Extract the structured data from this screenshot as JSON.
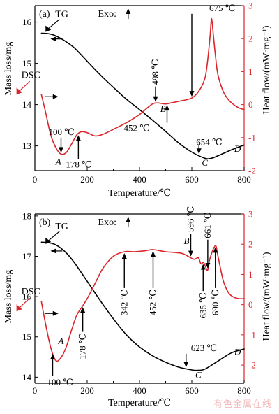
{
  "colors": {
    "tg": "#000000",
    "dsc": "#d9262b",
    "axis": "#000000"
  },
  "watermark": "有色金属在线",
  "chart_data": [
    {
      "type": "line",
      "panel_label": "(a)",
      "xlabel": "Temperature/℃",
      "ylabel_left": "Mass loss/mg",
      "ylabel_right": "Heat flow/(mW·mg⁻¹)",
      "exo_label": "Exo:",
      "xlim": [
        0,
        800
      ],
      "ylim_left": [
        12.4,
        16.4
      ],
      "ylim_right": [
        -2,
        3
      ],
      "x_ticks": [
        0,
        200,
        400,
        600,
        800
      ],
      "y_ticks_left": [
        13,
        14,
        15,
        16
      ],
      "y_ticks_right": [
        -2,
        -1,
        0,
        1,
        2,
        3
      ],
      "series": [
        {
          "name": "TG",
          "axis": "left",
          "x": [
            25,
            50,
            75,
            100,
            125,
            150,
            175,
            200,
            250,
            300,
            350,
            400,
            450,
            500,
            550,
            600,
            650,
            675,
            700,
            750,
            800
          ],
          "y": [
            15.73,
            15.72,
            15.68,
            15.6,
            15.5,
            15.38,
            15.22,
            15.05,
            14.72,
            14.42,
            14.13,
            13.88,
            13.62,
            13.35,
            13.07,
            12.85,
            12.7,
            12.7,
            12.76,
            12.9,
            13.02
          ]
        },
        {
          "name": "DSC",
          "axis": "right",
          "x": [
            25,
            40,
            60,
            80,
            100,
            120,
            140,
            160,
            178,
            200,
            230,
            260,
            300,
            350,
            400,
            430,
            452,
            470,
            498,
            520,
            550,
            600,
            630,
            650,
            660,
            670,
            675,
            680,
            690,
            700,
            720,
            740,
            760,
            780,
            800
          ],
          "y": [
            0.3,
            -0.2,
            -0.9,
            -1.3,
            -1.5,
            -1.45,
            -1.2,
            -0.92,
            -0.82,
            -0.85,
            -0.95,
            -0.9,
            -0.75,
            -0.55,
            -0.3,
            -0.1,
            0.03,
            0.05,
            0.02,
            0.05,
            0.1,
            0.2,
            0.45,
            0.8,
            1.3,
            2.1,
            2.6,
            2.3,
            1.5,
            0.9,
            0.4,
            0.15,
            0.0,
            -0.1,
            -0.15
          ]
        }
      ],
      "annotations": [
        {
          "text": "TG",
          "x": 110,
          "y_axis": "left",
          "y": 16.05
        },
        {
          "text": "DSC",
          "x": 55,
          "y_axis": "left",
          "y": 14.65
        },
        {
          "text": "100 ℃",
          "x": 100,
          "y_axis": "right",
          "y": -1.0
        },
        {
          "text": "178 ℃",
          "x": 185,
          "y_axis": "right",
          "y": -1.65
        },
        {
          "text": "452 ℃",
          "x": 420,
          "y_axis": "right",
          "y": -0.55
        },
        {
          "text": "498 ℃",
          "x": 520,
          "y_axis": "right",
          "y": 0.55
        },
        {
          "text": "675 ℃",
          "x": 720,
          "y_axis": "right",
          "y": 2.75
        },
        {
          "text": "654 ℃",
          "x": 670,
          "y_axis": "left",
          "y": 12.95
        }
      ],
      "point_labels": [
        {
          "text": "A",
          "x": 90,
          "y_axis": "right",
          "y": -1.82
        },
        {
          "text": "B",
          "x": 490,
          "y_axis": "right",
          "y": -0.22
        },
        {
          "text": "C",
          "x": 650,
          "y_axis": "left",
          "y": 12.52
        },
        {
          "text": "D",
          "x": 775,
          "y_axis": "left",
          "y": 12.86
        }
      ]
    },
    {
      "type": "line",
      "panel_label": "(b)",
      "xlabel": "Temperature/℃",
      "ylabel_left": "Mass loss/mg",
      "ylabel_right": "Heat flow/(mW·mg⁻¹)",
      "exo_label": "Exo:",
      "xlim": [
        0,
        800
      ],
      "ylim_left": [
        13.85,
        18.05
      ],
      "ylim_right": [
        -2.6,
        3
      ],
      "x_ticks": [
        0,
        200,
        400,
        600,
        800
      ],
      "y_ticks_left": [
        14,
        15,
        16,
        17,
        18
      ],
      "y_ticks_right": [
        -2,
        -1,
        0,
        1,
        2,
        3
      ],
      "series": [
        {
          "name": "TG",
          "axis": "left",
          "x": [
            25,
            50,
            75,
            100,
            125,
            150,
            175,
            200,
            250,
            300,
            350,
            400,
            450,
            500,
            550,
            600,
            623,
            650,
            700,
            750,
            800
          ],
          "y": [
            17.35,
            17.34,
            17.3,
            17.2,
            17.05,
            16.85,
            16.62,
            16.38,
            15.9,
            15.45,
            15.05,
            14.75,
            14.53,
            14.37,
            14.25,
            14.18,
            14.17,
            14.2,
            14.4,
            14.6,
            14.7
          ]
        },
        {
          "name": "DSC",
          "axis": "right",
          "x": [
            25,
            40,
            60,
            80,
            100,
            120,
            140,
            160,
            178,
            200,
            230,
            260,
            300,
            342,
            380,
            420,
            452,
            500,
            560,
            596,
            610,
            625,
            635,
            645,
            655,
            661,
            670,
            690,
            700,
            720,
            740,
            760,
            780,
            800
          ],
          "y": [
            0.1,
            -0.6,
            -1.4,
            -1.85,
            -1.75,
            -1.4,
            -0.85,
            -0.35,
            -0.1,
            0.2,
            0.7,
            1.2,
            1.6,
            1.75,
            1.75,
            1.78,
            1.82,
            1.75,
            1.7,
            1.55,
            1.5,
            1.55,
            1.35,
            1.4,
            1.2,
            1.15,
            1.55,
            1.95,
            1.6,
            0.8,
            0.4,
            0.25,
            0.2,
            0.2
          ]
        }
      ],
      "annotations": [
        {
          "text": "TG",
          "x": 110,
          "y_axis": "left",
          "y": 17.6
        },
        {
          "text": "DSC",
          "x": 55,
          "y_axis": "left",
          "y": 16.05
        },
        {
          "text": "100 ℃",
          "x": 100,
          "y_axis": "right",
          "y": -2.35
        },
        {
          "text": "178 ℃",
          "x": 175,
          "y_axis": "right",
          "y": -0.9
        },
        {
          "text": "342 ℃",
          "x": 342,
          "y_axis": "right",
          "y": 0.55
        },
        {
          "text": "452 ℃",
          "x": 452,
          "y_axis": "right",
          "y": 0.55
        },
        {
          "text": "596 ℃",
          "x": 596,
          "y_axis": "right",
          "y": 2.35
        },
        {
          "text": "635 ℃",
          "x": 630,
          "y_axis": "right",
          "y": 0.45
        },
        {
          "text": "661 ℃",
          "x": 661,
          "y_axis": "right",
          "y": 2.15
        },
        {
          "text": "690 ℃",
          "x": 690,
          "y_axis": "right",
          "y": 0.55
        },
        {
          "text": "623 ℃",
          "x": 650,
          "y_axis": "left",
          "y": 14.58
        }
      ],
      "point_labels": [
        {
          "text": "A",
          "x": 100,
          "y_axis": "right",
          "y": -1.3
        },
        {
          "text": "B",
          "x": 580,
          "y_axis": "right",
          "y": 2.0
        },
        {
          "text": "C",
          "x": 625,
          "y_axis": "left",
          "y": 13.98
        },
        {
          "text": "D",
          "x": 775,
          "y_axis": "left",
          "y": 14.55
        }
      ]
    }
  ]
}
